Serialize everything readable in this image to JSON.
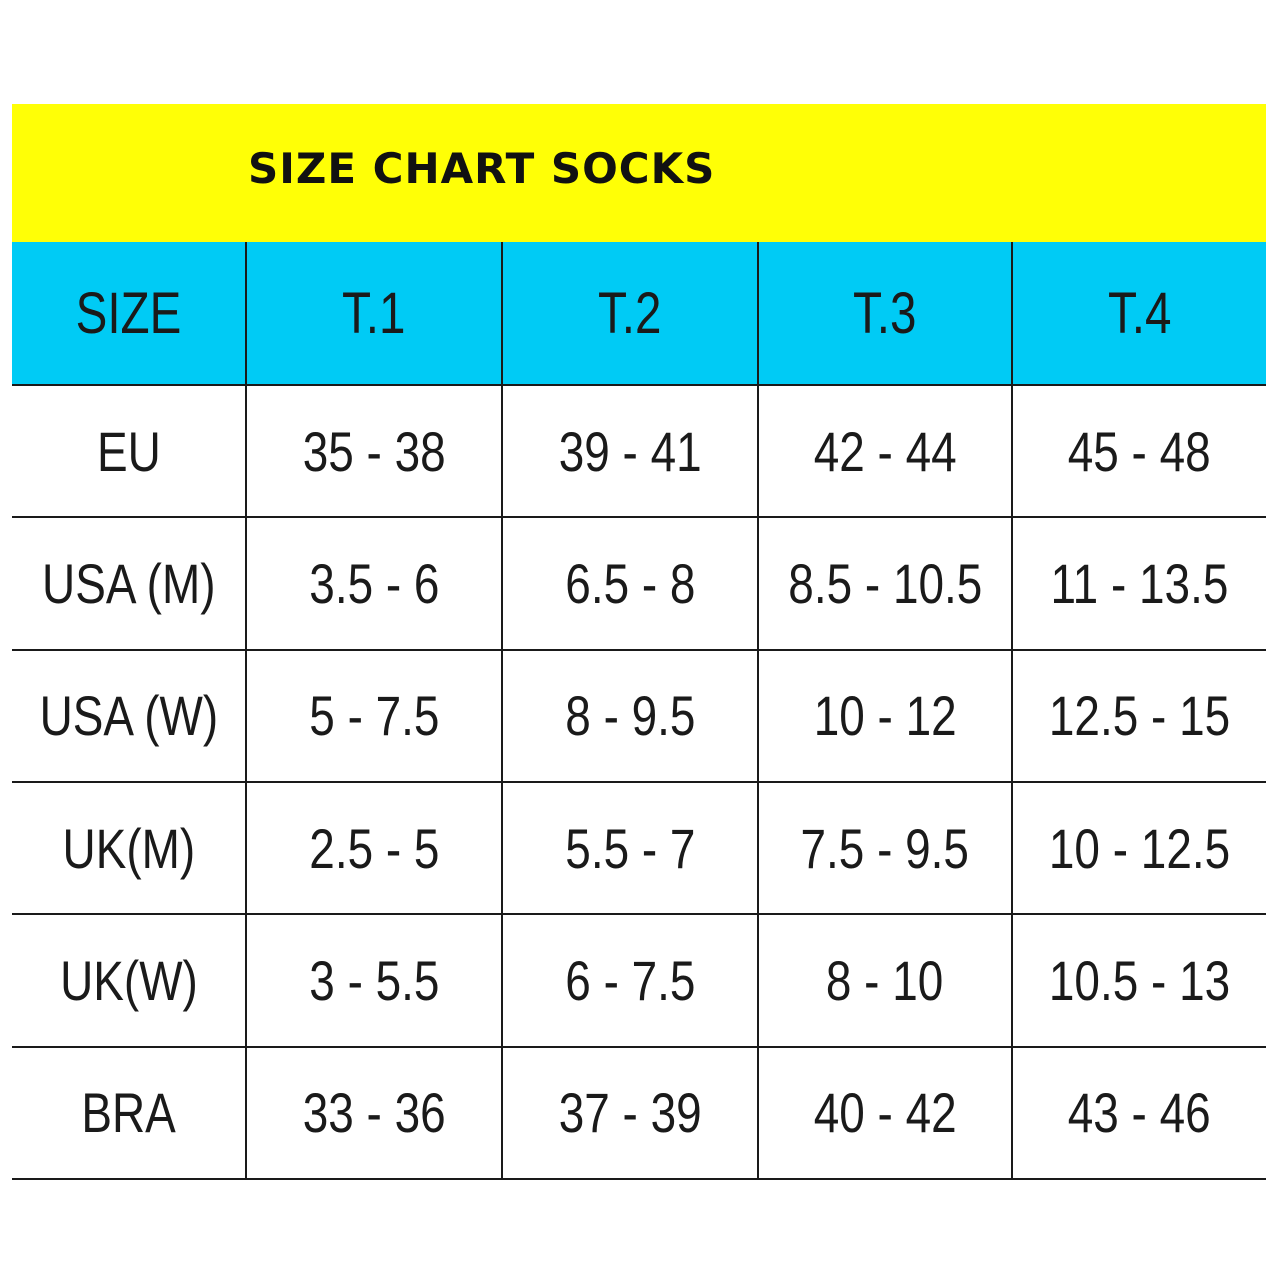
{
  "title": "SIZE CHART SOCKS",
  "header": {
    "row_label": "SIZE",
    "columns": [
      "T.1",
      "T.2",
      "T.3",
      "T.4"
    ]
  },
  "rows": [
    {
      "label": "EU",
      "values": [
        "35 - 38",
        "39 - 41",
        "42 - 44",
        "45 - 48"
      ]
    },
    {
      "label": "USA (M)",
      "values": [
        "3.5 - 6",
        "6.5 - 8",
        "8.5 - 10.5",
        "11 - 13.5"
      ]
    },
    {
      "label": "USA (W)",
      "values": [
        "5 - 7.5",
        "8 - 9.5",
        "10 - 12",
        "12.5 - 15"
      ]
    },
    {
      "label": "UK(M)",
      "values": [
        "2.5 - 5",
        "5.5 - 7",
        "7.5 - 9.5",
        "10 - 12.5"
      ]
    },
    {
      "label": "UK(W)",
      "values": [
        "3 - 5.5",
        "6 - 7.5",
        "8 - 10",
        "10.5 - 13"
      ]
    },
    {
      "label": "BRA",
      "values": [
        "33 - 36",
        "37 - 39",
        "40 - 42",
        "43 - 46"
      ]
    }
  ],
  "colors": {
    "title_background": "#ffff06",
    "header_background": "#00cbf5",
    "text": "#1a1a1a"
  }
}
